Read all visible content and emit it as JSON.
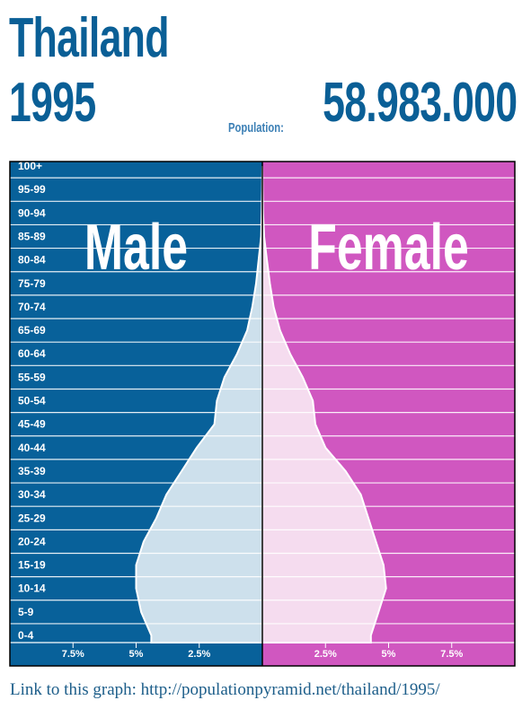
{
  "header": {
    "country": "Thailand",
    "year": "1995",
    "population_label": "Population:",
    "population_value": "58.983.000"
  },
  "chart_data": {
    "type": "bar",
    "subtype": "population-pyramid",
    "categories": [
      "0-4",
      "5-9",
      "10-14",
      "15-19",
      "20-24",
      "25-29",
      "30-34",
      "35-39",
      "40-44",
      "45-49",
      "50-54",
      "55-59",
      "60-64",
      "65-69",
      "70-74",
      "75-79",
      "80-84",
      "85-89",
      "90-94",
      "95-99",
      "100+"
    ],
    "series": [
      {
        "name": "Male",
        "color": "#08619a",
        "fill": "#cde0ec",
        "values": [
          4.4,
          4.8,
          5.0,
          5.0,
          4.7,
          4.2,
          3.8,
          3.2,
          2.6,
          1.9,
          1.8,
          1.5,
          1.0,
          0.6,
          0.4,
          0.25,
          0.15,
          0.05,
          0.03,
          0.01,
          0.0
        ]
      },
      {
        "name": "Female",
        "color": "#d057c0",
        "fill": "#f5dcef",
        "values": [
          4.3,
          4.6,
          4.9,
          4.8,
          4.5,
          4.2,
          3.9,
          3.3,
          2.5,
          2.1,
          2.0,
          1.6,
          1.1,
          0.7,
          0.45,
          0.3,
          0.18,
          0.07,
          0.03,
          0.01,
          0.0
        ]
      }
    ],
    "xticks": [
      "7.5%",
      "5%",
      "2.5%",
      "2.5%",
      "5%",
      "7.5%"
    ],
    "xtick_values": [
      -7.5,
      -5,
      -2.5,
      2.5,
      5,
      7.5
    ],
    "xlim": [
      -10,
      10
    ],
    "labels": {
      "left": "Male",
      "right": "Female"
    }
  },
  "footer": {
    "link_text": "Link to this graph: http://populationpyramid.net/thailand/1995/"
  }
}
